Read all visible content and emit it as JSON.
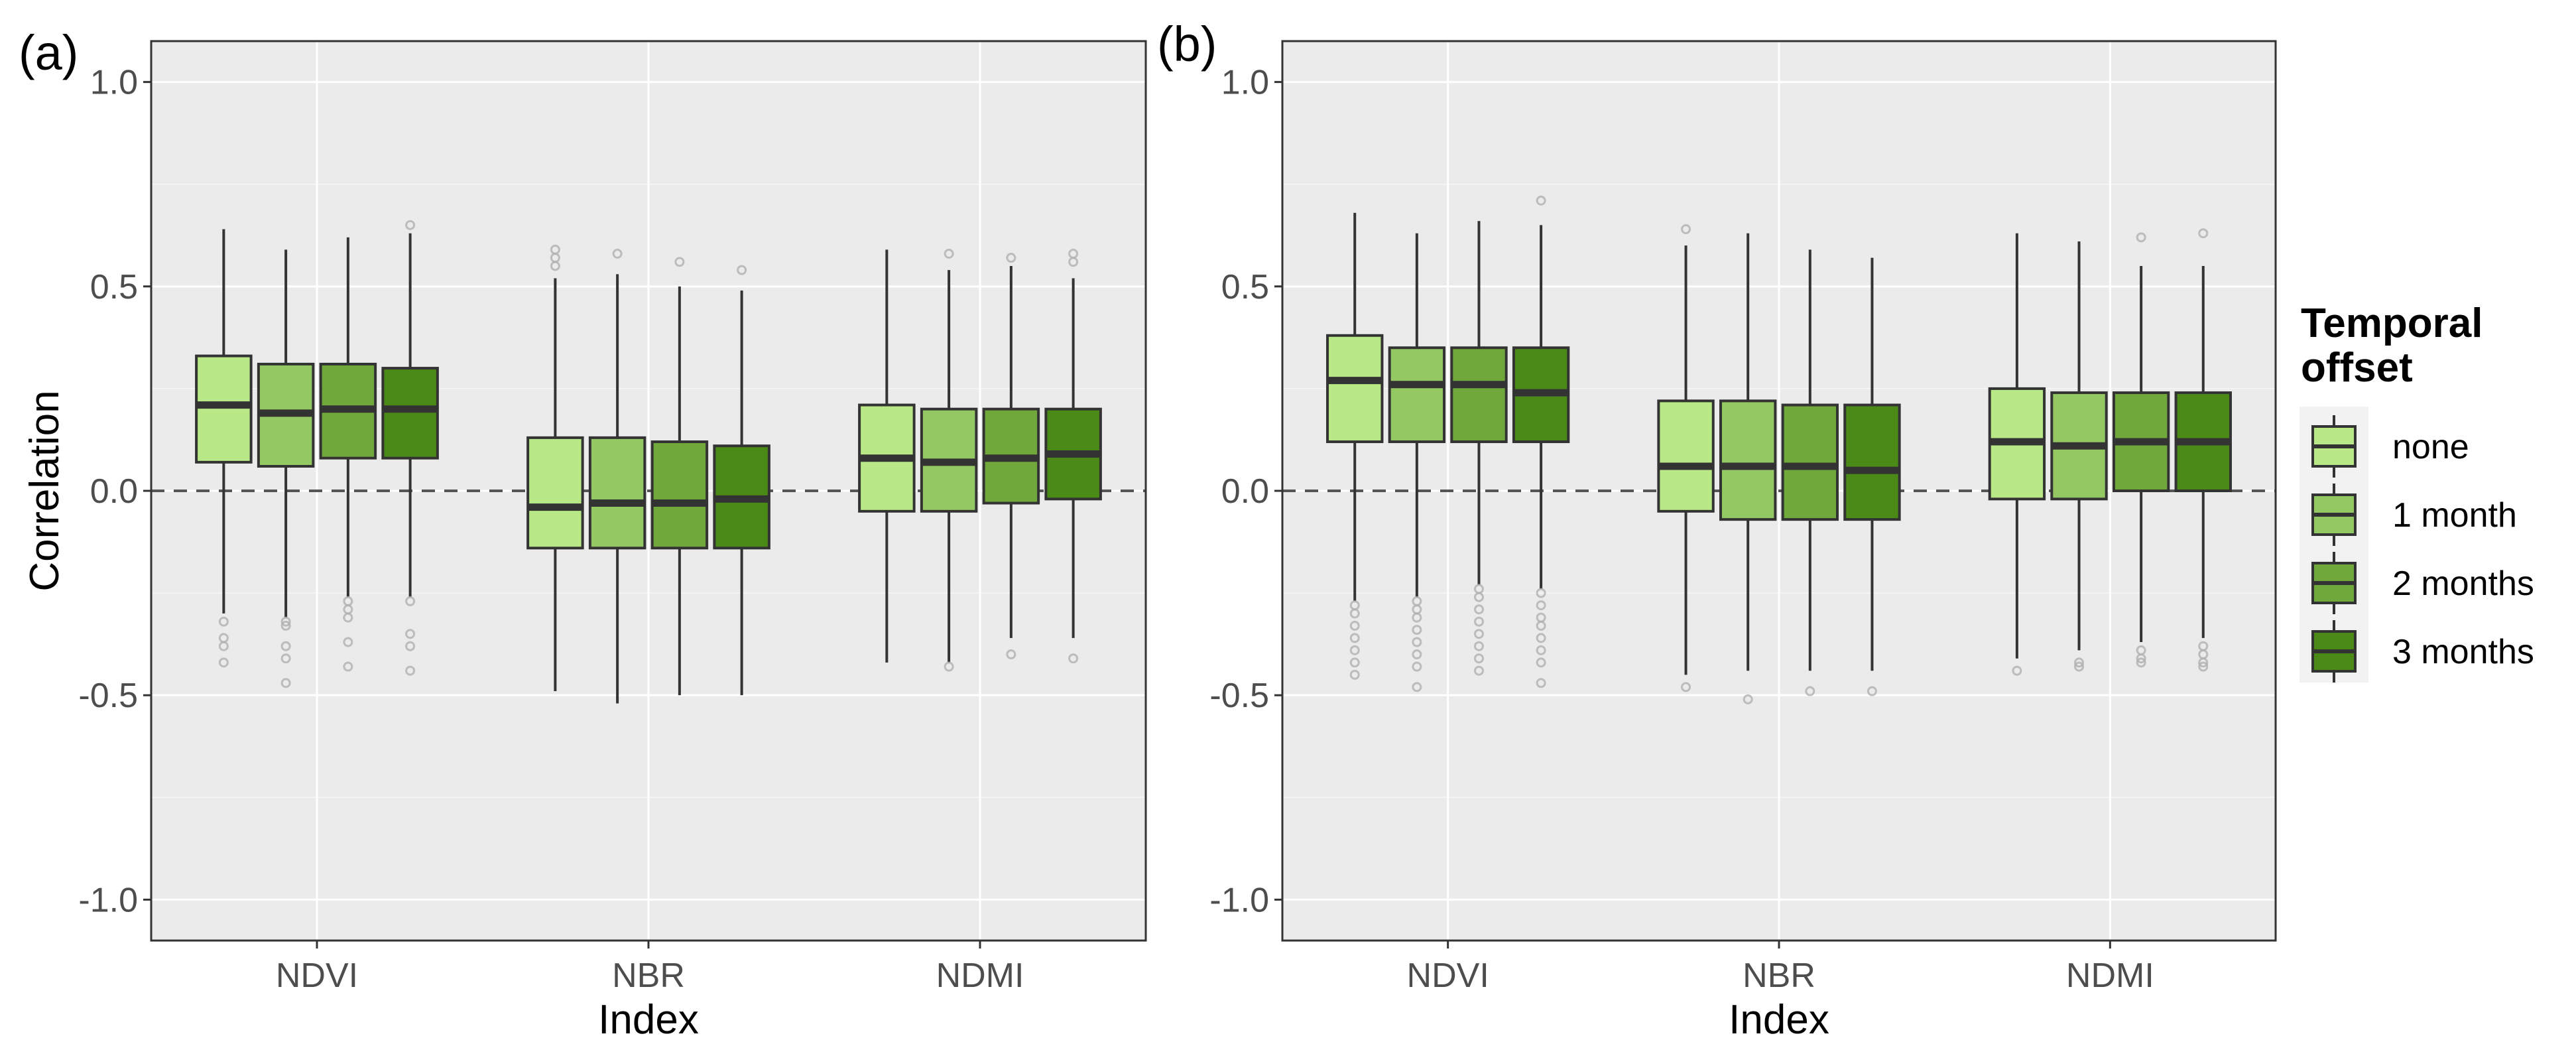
{
  "chart_data": [
    {
      "type": "boxplot",
      "panel_label": "(a)",
      "xlabel": "Index",
      "ylabel": "Correlation",
      "ylim": [
        -1.1,
        1.1
      ],
      "yticks": [
        -1.0,
        -0.5,
        0.0,
        0.5,
        1.0
      ],
      "ytick_labels": [
        "-1.0",
        "-0.5",
        "0.0",
        "0.5",
        "1.0"
      ],
      "reference_line": 0.0,
      "categories": [
        "NDVI",
        "NBR",
        "NDMI"
      ],
      "series": [
        {
          "name": "none",
          "boxes": [
            {
              "whisker_low": -0.3,
              "q1": 0.07,
              "median": 0.21,
              "q3": 0.33,
              "whisker_high": 0.64,
              "outliers": [
                -0.32,
                -0.36,
                -0.38,
                -0.42
              ]
            },
            {
              "whisker_low": -0.49,
              "q1": -0.14,
              "median": -0.04,
              "q3": 0.13,
              "whisker_high": 0.52,
              "outliers": [
                0.55,
                0.57,
                0.59
              ]
            },
            {
              "whisker_low": -0.42,
              "q1": -0.05,
              "median": 0.08,
              "q3": 0.21,
              "whisker_high": 0.59,
              "outliers": []
            }
          ]
        },
        {
          "name": "1 month",
          "boxes": [
            {
              "whisker_low": -0.31,
              "q1": 0.06,
              "median": 0.19,
              "q3": 0.31,
              "whisker_high": 0.59,
              "outliers": [
                -0.32,
                -0.33,
                -0.38,
                -0.41,
                -0.47
              ]
            },
            {
              "whisker_low": -0.52,
              "q1": -0.14,
              "median": -0.03,
              "q3": 0.13,
              "whisker_high": 0.53,
              "outliers": [
                0.58
              ]
            },
            {
              "whisker_low": -0.42,
              "q1": -0.05,
              "median": 0.07,
              "q3": 0.2,
              "whisker_high": 0.54,
              "outliers": [
                -0.43,
                0.58
              ]
            }
          ]
        },
        {
          "name": "2 months",
          "boxes": [
            {
              "whisker_low": -0.26,
              "q1": 0.08,
              "median": 0.2,
              "q3": 0.31,
              "whisker_high": 0.62,
              "outliers": [
                -0.27,
                -0.29,
                -0.31,
                -0.37,
                -0.43
              ]
            },
            {
              "whisker_low": -0.5,
              "q1": -0.14,
              "median": -0.03,
              "q3": 0.12,
              "whisker_high": 0.5,
              "outliers": [
                0.56
              ]
            },
            {
              "whisker_low": -0.36,
              "q1": -0.03,
              "median": 0.08,
              "q3": 0.2,
              "whisker_high": 0.55,
              "outliers": [
                -0.4,
                0.57
              ]
            }
          ]
        },
        {
          "name": "3 months",
          "boxes": [
            {
              "whisker_low": -0.26,
              "q1": 0.08,
              "median": 0.2,
              "q3": 0.3,
              "whisker_high": 0.63,
              "outliers": [
                -0.27,
                -0.35,
                -0.38,
                -0.44,
                0.65
              ]
            },
            {
              "whisker_low": -0.5,
              "q1": -0.14,
              "median": -0.02,
              "q3": 0.11,
              "whisker_high": 0.49,
              "outliers": [
                0.54
              ]
            },
            {
              "whisker_low": -0.36,
              "q1": -0.02,
              "median": 0.09,
              "q3": 0.2,
              "whisker_high": 0.52,
              "outliers": [
                -0.41,
                0.56,
                0.58
              ]
            }
          ]
        }
      ]
    },
    {
      "type": "boxplot",
      "panel_label": "(b)",
      "xlabel": "Index",
      "ylabel": "",
      "ylim": [
        -1.1,
        1.1
      ],
      "yticks": [
        -1.0,
        -0.5,
        0.0,
        0.5,
        1.0
      ],
      "ytick_labels": [
        "-1.0",
        "-0.5",
        "0.0",
        "0.5",
        "1.0"
      ],
      "reference_line": 0.0,
      "categories": [
        "NDVI",
        "NBR",
        "NDMI"
      ],
      "series": [
        {
          "name": "none",
          "boxes": [
            {
              "whisker_low": -0.27,
              "q1": 0.12,
              "median": 0.27,
              "q3": 0.38,
              "whisker_high": 0.68,
              "outliers": [
                -0.28,
                -0.3,
                -0.33,
                -0.36,
                -0.39,
                -0.42,
                -0.45
              ]
            },
            {
              "whisker_low": -0.45,
              "q1": -0.05,
              "median": 0.06,
              "q3": 0.22,
              "whisker_high": 0.6,
              "outliers": [
                -0.48,
                0.64
              ]
            },
            {
              "whisker_low": -0.41,
              "q1": -0.02,
              "median": 0.12,
              "q3": 0.25,
              "whisker_high": 0.63,
              "outliers": [
                -0.44
              ]
            }
          ]
        },
        {
          "name": "1 month",
          "boxes": [
            {
              "whisker_low": -0.26,
              "q1": 0.12,
              "median": 0.26,
              "q3": 0.35,
              "whisker_high": 0.63,
              "outliers": [
                -0.27,
                -0.29,
                -0.31,
                -0.34,
                -0.37,
                -0.4,
                -0.43,
                -0.48
              ]
            },
            {
              "whisker_low": -0.44,
              "q1": -0.07,
              "median": 0.06,
              "q3": 0.22,
              "whisker_high": 0.63,
              "outliers": [
                -0.51
              ]
            },
            {
              "whisker_low": -0.39,
              "q1": -0.02,
              "median": 0.11,
              "q3": 0.24,
              "whisker_high": 0.61,
              "outliers": [
                -0.42,
                -0.43
              ]
            }
          ]
        },
        {
          "name": "2 months",
          "boxes": [
            {
              "whisker_low": -0.23,
              "q1": 0.12,
              "median": 0.26,
              "q3": 0.35,
              "whisker_high": 0.66,
              "outliers": [
                -0.24,
                -0.26,
                -0.29,
                -0.32,
                -0.35,
                -0.38,
                -0.41,
                -0.44
              ]
            },
            {
              "whisker_low": -0.44,
              "q1": -0.07,
              "median": 0.06,
              "q3": 0.21,
              "whisker_high": 0.59,
              "outliers": [
                -0.49
              ]
            },
            {
              "whisker_low": -0.37,
              "q1": 0.0,
              "median": 0.12,
              "q3": 0.24,
              "whisker_high": 0.55,
              "outliers": [
                -0.39,
                -0.41,
                -0.42,
                0.62
              ]
            }
          ]
        },
        {
          "name": "3 months",
          "boxes": [
            {
              "whisker_low": -0.24,
              "q1": 0.12,
              "median": 0.24,
              "q3": 0.35,
              "whisker_high": 0.65,
              "outliers": [
                -0.25,
                -0.28,
                -0.31,
                -0.33,
                -0.36,
                -0.39,
                -0.42,
                -0.47,
                0.71
              ]
            },
            {
              "whisker_low": -0.44,
              "q1": -0.07,
              "median": 0.05,
              "q3": 0.21,
              "whisker_high": 0.57,
              "outliers": [
                -0.49
              ]
            },
            {
              "whisker_low": -0.36,
              "q1": 0.0,
              "median": 0.12,
              "q3": 0.24,
              "whisker_high": 0.55,
              "outliers": [
                -0.38,
                -0.4,
                -0.42,
                -0.43,
                0.63
              ]
            }
          ]
        }
      ]
    }
  ],
  "legend": {
    "title_line1": "Temporal",
    "title_line2": "offset",
    "entries": [
      {
        "label": "none",
        "color": "#b8e986"
      },
      {
        "label": "1 month",
        "color": "#94c863"
      },
      {
        "label": "2 months",
        "color": "#70a83c"
      },
      {
        "label": "3 months",
        "color": "#4c8a18"
      }
    ]
  },
  "colors": {
    "panel_background": "#ebebeb",
    "gridline": "#ffffff",
    "box_outline": "#333333",
    "outlier": "#b0b0b0",
    "reference_line": "#555555"
  }
}
